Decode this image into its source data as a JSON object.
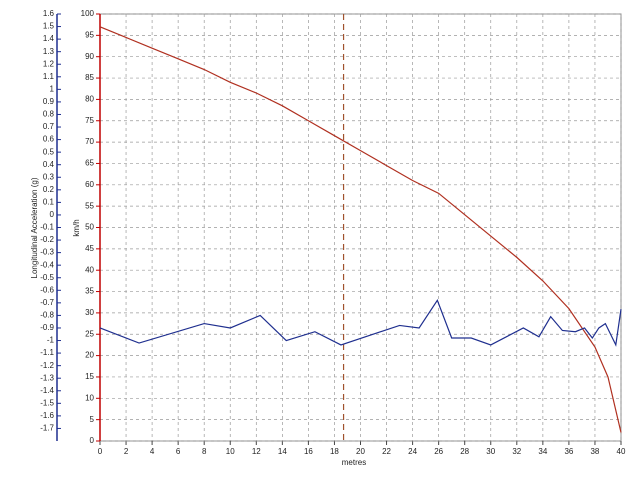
{
  "chart_data": {
    "type": "line",
    "xlabel": "metres",
    "ylabel": "km/h",
    "y2label": "Longitudinal Acceleration (g)",
    "xlim": [
      0,
      40
    ],
    "xticks": [
      0,
      2,
      4,
      6,
      8,
      10,
      12,
      14,
      16,
      18,
      20,
      22,
      24,
      26,
      28,
      30,
      32,
      34,
      36,
      38,
      40
    ],
    "ylim": [
      0,
      100
    ],
    "yticks": [
      0,
      5,
      10,
      15,
      20,
      25,
      30,
      35,
      40,
      45,
      50,
      55,
      60,
      65,
      70,
      75,
      80,
      85,
      90,
      95,
      100
    ],
    "y2lim": [
      -1.8,
      1.6
    ],
    "y2ticks": [
      1.6,
      1.5,
      1.4,
      1.3,
      1.2,
      1.1,
      1,
      0.9,
      0.8,
      0.7,
      0.6,
      0.5,
      0.4,
      0.3,
      0.2,
      0.1,
      0,
      -0.1,
      -0.2,
      -0.3,
      -0.4,
      -0.5,
      -0.6,
      -0.7,
      -0.8,
      -0.9,
      -1,
      -1.1,
      -1.2,
      -1.3,
      -1.4,
      -1.5,
      -1.6,
      -1.7
    ],
    "grid": true,
    "cursor": 18.7,
    "cursor_color": "#a0522d",
    "ycolor": "#c00000",
    "y2color": "#1f2f8f",
    "series": [
      {
        "color": "#b03020",
        "x": [
          0,
          2,
          4,
          6,
          8,
          10,
          12,
          14,
          16,
          18,
          20,
          22,
          24,
          26,
          28,
          30,
          32,
          34,
          36,
          38,
          39,
          40
        ],
        "values": [
          97,
          94.5,
          92,
          89.5,
          87,
          84,
          81.5,
          78.5,
          75,
          71.5,
          68,
          64.5,
          61,
          58,
          53,
          48,
          43,
          37.5,
          31,
          22,
          15,
          2
        ]
      },
      {
        "color": "#1f2f8f",
        "axis": "y2",
        "x": [
          0,
          3,
          8,
          10,
          12.3,
          14.3,
          16.5,
          18.5,
          23,
          24.5,
          25.9,
          27,
          28.5,
          30,
          32.5,
          33.7,
          34.6,
          35.5,
          36.5,
          37.2,
          37.8,
          38.3,
          38.8,
          39.2,
          39.6,
          40
        ],
        "values": [
          -0.9,
          -1.02,
          -0.865,
          -0.9,
          -0.8,
          -1.0,
          -0.93,
          -1.035,
          -0.88,
          -0.9,
          -0.68,
          -0.98,
          -0.98,
          -1.035,
          -0.9,
          -0.97,
          -0.81,
          -0.92,
          -0.93,
          -0.9,
          -0.98,
          -0.9,
          -0.865,
          -0.95,
          -1.035,
          -0.75
        ]
      }
    ]
  }
}
